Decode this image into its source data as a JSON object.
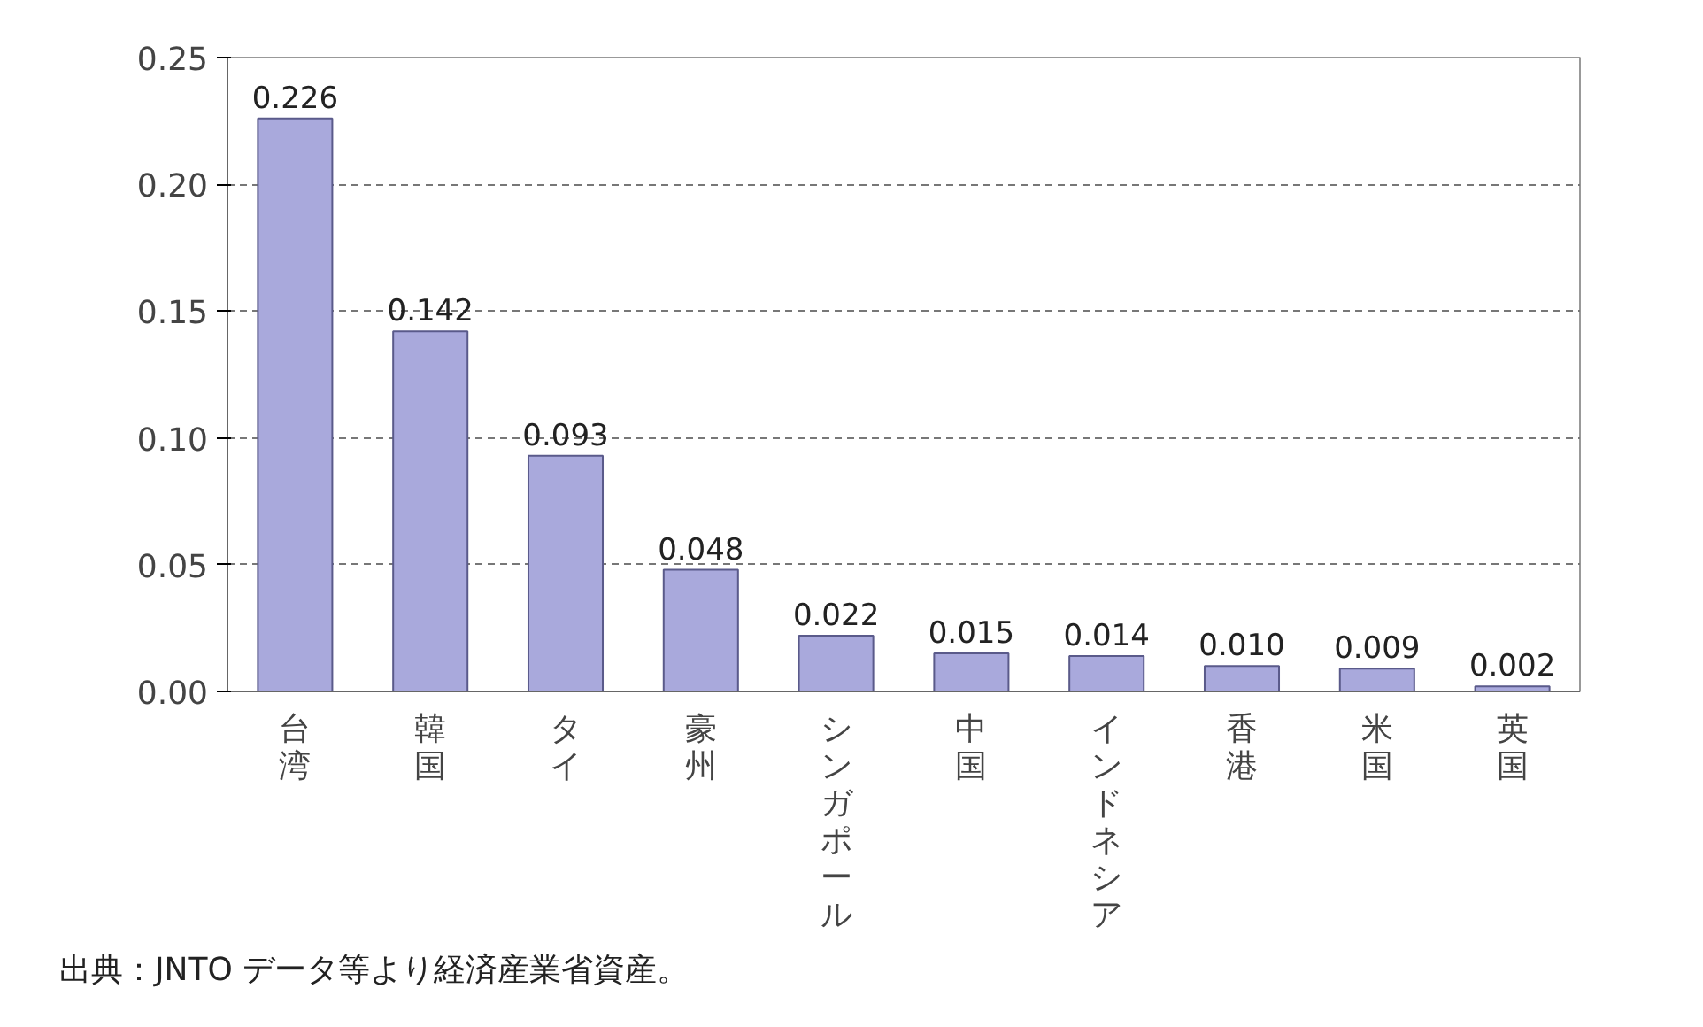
{
  "chart_data": {
    "type": "bar",
    "categories": [
      "台湾",
      "韓国",
      "タイ",
      "豪州",
      "シンガポール",
      "中国",
      "インドネシア",
      "香港",
      "米国",
      "英国"
    ],
    "values": [
      0.226,
      0.142,
      0.093,
      0.048,
      0.022,
      0.015,
      0.014,
      0.01,
      0.009,
      0.002
    ],
    "value_labels": [
      "0.226",
      "0.142",
      "0.093",
      "0.048",
      "0.022",
      "0.015",
      "0.014",
      "0.010",
      "0.009",
      "0.002"
    ],
    "color": "#a9a9dc",
    "ylim": [
      0,
      0.25
    ],
    "yticks": [
      {
        "value": 0,
        "label": "0.00"
      },
      {
        "value": 0.05,
        "label": "0.05"
      },
      {
        "value": 0.1,
        "label": "0.10"
      },
      {
        "value": 0.15,
        "label": "0.15"
      },
      {
        "value": 0.2,
        "label": "0.20"
      },
      {
        "value": 0.25,
        "label": "0.25"
      }
    ],
    "grid": "y",
    "annotations": [
      "出典：JNTO データ等より経済産業省資産。"
    ]
  }
}
